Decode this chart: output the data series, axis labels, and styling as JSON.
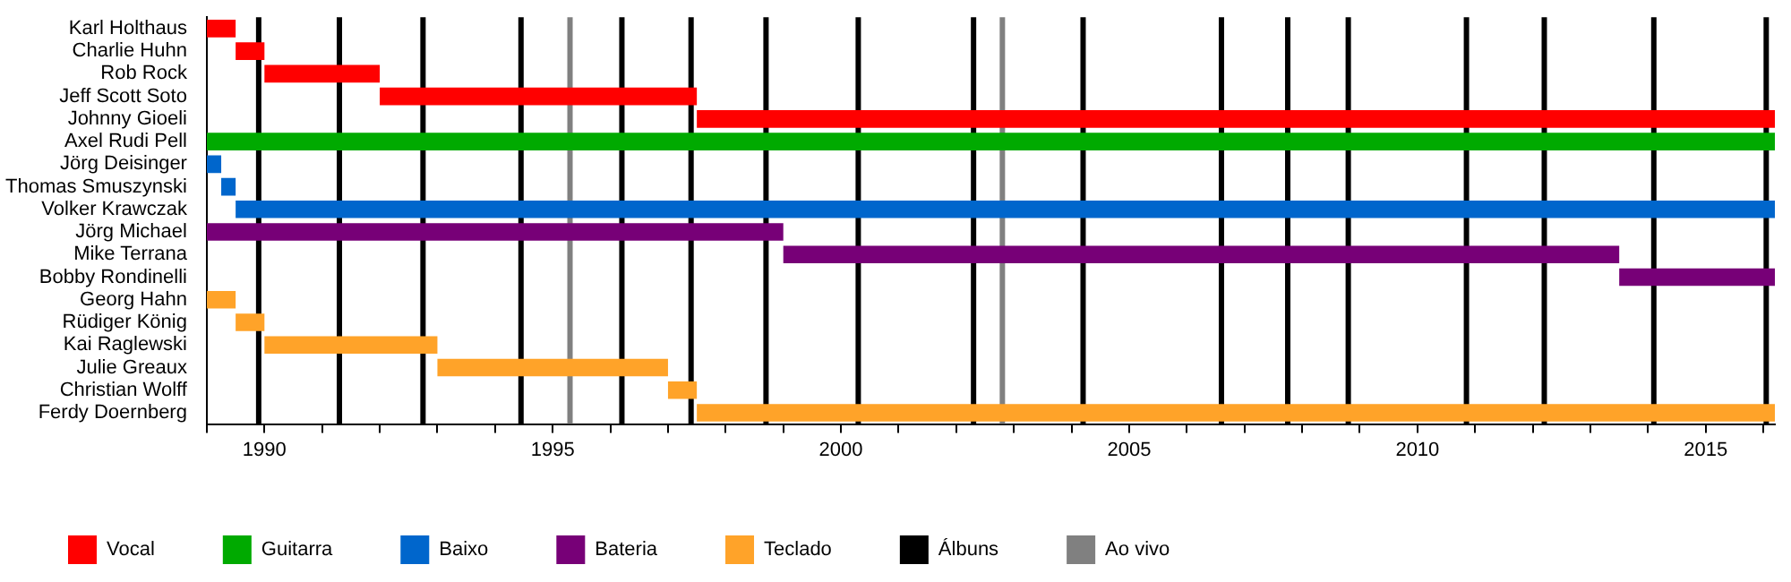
{
  "chart_data": {
    "type": "bar",
    "orientation": "horizontal",
    "categories": [
      "Karl Holthaus",
      "Charlie Huhn",
      "Rob Rock",
      "Jeff Scott Soto",
      "Johnny Gioeli",
      "Axel Rudi Pell",
      "Jörg Deisinger",
      "Thomas Smuszynski",
      "Volker Krawczak",
      "Jörg Michael",
      "Mike Terrana",
      "Bobby Rondinelli",
      "Georg Hahn",
      "Rüdiger König",
      "Kai Raglewski",
      "Julie Greaux",
      "Christian Wolff",
      "Ferdy Doernberg"
    ],
    "series": [
      {
        "name": "Vocal",
        "color": "#ff0000",
        "base": [
          1989.0,
          1989.5,
          1990.0,
          1992.0,
          1997.5,
          null,
          null,
          null,
          null,
          null,
          null,
          null,
          null,
          null,
          null,
          null,
          null,
          null
        ],
        "values": [
          0.5,
          0.5,
          2.0,
          5.5,
          18.7,
          null,
          null,
          null,
          null,
          null,
          null,
          null,
          null,
          null,
          null,
          null,
          null,
          null
        ]
      },
      {
        "name": "Guitarra",
        "color": "#00aa00",
        "base": [
          null,
          null,
          null,
          null,
          null,
          1989.0,
          null,
          null,
          null,
          null,
          null,
          null,
          null,
          null,
          null,
          null,
          null,
          null
        ],
        "values": [
          null,
          null,
          null,
          null,
          null,
          27.2,
          null,
          null,
          null,
          null,
          null,
          null,
          null,
          null,
          null,
          null,
          null,
          null
        ]
      },
      {
        "name": "Baixo",
        "color": "#0066cc",
        "base": [
          null,
          null,
          null,
          null,
          null,
          null,
          1989.0,
          1989.25,
          1989.5,
          null,
          null,
          null,
          null,
          null,
          null,
          null,
          null,
          null
        ],
        "values": [
          null,
          null,
          null,
          null,
          null,
          null,
          0.25,
          0.25,
          26.7,
          null,
          null,
          null,
          null,
          null,
          null,
          null,
          null,
          null
        ]
      },
      {
        "name": "Bateria",
        "color": "#770077",
        "base": [
          null,
          null,
          null,
          null,
          null,
          null,
          null,
          null,
          null,
          1989.0,
          1999.0,
          2013.5,
          null,
          null,
          null,
          null,
          null,
          null
        ],
        "values": [
          null,
          null,
          null,
          null,
          null,
          null,
          null,
          null,
          null,
          10.0,
          14.5,
          2.7,
          null,
          null,
          null,
          null,
          null,
          null
        ]
      },
      {
        "name": "Teclado",
        "color": "#ffa329",
        "base": [
          null,
          null,
          null,
          null,
          null,
          null,
          null,
          null,
          null,
          null,
          null,
          null,
          1989.0,
          1989.5,
          1990.0,
          1993.0,
          1997.0,
          1997.5
        ],
        "values": [
          null,
          null,
          null,
          null,
          null,
          null,
          null,
          null,
          null,
          null,
          null,
          null,
          0.5,
          0.5,
          3.0,
          4.0,
          0.5,
          18.7
        ]
      }
    ],
    "ref_lines": [
      {
        "axis": "x",
        "value": 1989.9,
        "color": "#000000",
        "label": "Álbuns"
      },
      {
        "axis": "x",
        "value": 1991.3,
        "color": "#000000"
      },
      {
        "axis": "x",
        "value": 1992.75,
        "color": "#000000"
      },
      {
        "axis": "x",
        "value": 1994.45,
        "color": "#000000"
      },
      {
        "axis": "x",
        "value": 1996.2,
        "color": "#000000"
      },
      {
        "axis": "x",
        "value": 1997.4,
        "color": "#000000"
      },
      {
        "axis": "x",
        "value": 1998.7,
        "color": "#000000"
      },
      {
        "axis": "x",
        "value": 2000.3,
        "color": "#000000"
      },
      {
        "axis": "x",
        "value": 2002.3,
        "color": "#000000"
      },
      {
        "axis": "x",
        "value": 2004.2,
        "color": "#000000"
      },
      {
        "axis": "x",
        "value": 2006.6,
        "color": "#000000"
      },
      {
        "axis": "x",
        "value": 2007.75,
        "color": "#000000"
      },
      {
        "axis": "x",
        "value": 2008.8,
        "color": "#000000"
      },
      {
        "axis": "x",
        "value": 2010.85,
        "color": "#000000"
      },
      {
        "axis": "x",
        "value": 2012.2,
        "color": "#000000"
      },
      {
        "axis": "x",
        "value": 2014.1,
        "color": "#000000"
      },
      {
        "axis": "x",
        "value": 2016.05,
        "color": "#000000"
      },
      {
        "axis": "x",
        "value": 1995.3,
        "color": "#808080",
        "label": "Ao vivo"
      },
      {
        "axis": "x",
        "value": 2002.8,
        "color": "#808080"
      }
    ],
    "xlim": [
      1989.0,
      2016.2
    ],
    "xticks": [
      {
        "value": 1989,
        "label": null
      },
      1990,
      {
        "value": 1991,
        "label": null
      },
      {
        "value": 1992,
        "label": null
      },
      {
        "value": 1993,
        "label": null
      },
      {
        "value": 1994,
        "label": null
      },
      1995,
      {
        "value": 1996,
        "label": null
      },
      {
        "value": 1997,
        "label": null
      },
      {
        "value": 1998,
        "label": null
      },
      {
        "value": 1999,
        "label": null
      },
      2000,
      {
        "value": 2001,
        "label": null
      },
      {
        "value": 2002,
        "label": null
      },
      {
        "value": 2003,
        "label": null
      },
      {
        "value": 2004,
        "label": null
      },
      2005,
      {
        "value": 2006,
        "label": null
      },
      {
        "value": 2007,
        "label": null
      },
      {
        "value": 2008,
        "label": null
      },
      {
        "value": 2009,
        "label": null
      },
      2010,
      {
        "value": 2011,
        "label": null
      },
      {
        "value": 2012,
        "label": null
      },
      {
        "value": 2013,
        "label": null
      },
      {
        "value": 2014,
        "label": null
      },
      2015,
      {
        "value": 2016,
        "label": null
      }
    ],
    "grid": false,
    "legend": "bottom"
  }
}
